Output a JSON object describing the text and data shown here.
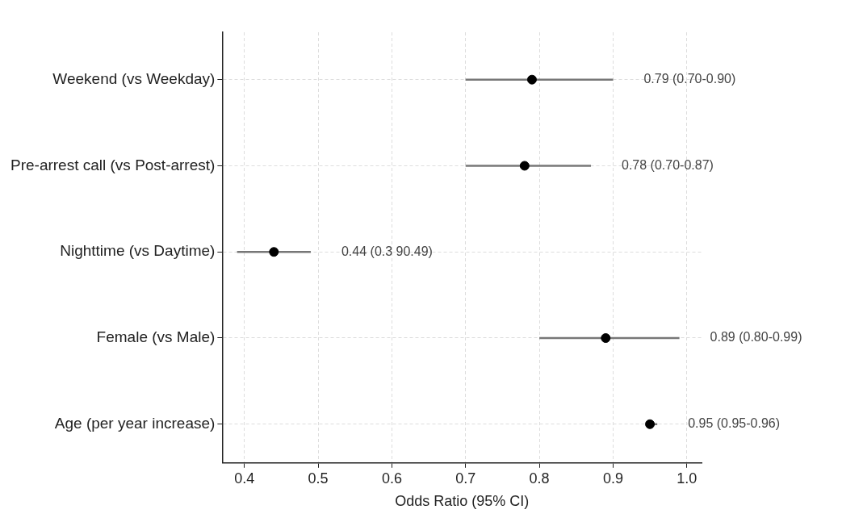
{
  "chart_data": {
    "type": "scatter",
    "orientation": "horizontal",
    "xlabel": "Odds Ratio (95% CI)",
    "categories": [
      "Weekend (vs Weekday)",
      "Pre-arrest call (vs Post-arrest)",
      "Nighttime (vs Daytime)",
      "Female (vs Male)",
      "Age (per year increase)"
    ],
    "values": [
      0.79,
      0.78,
      0.44,
      0.89,
      0.95
    ],
    "errors": [
      [
        0.7,
        0.9
      ],
      [
        0.7,
        0.87
      ],
      [
        0.39,
        0.49
      ],
      [
        0.8,
        0.99
      ],
      [
        0.95,
        0.96
      ]
    ],
    "annotations": [
      {
        "text": "0.79 (0.70-0.90)",
        "x": 0.9,
        "y": "Weekend (vs Weekday)"
      },
      {
        "text": "0.78 (0.70-0.87)",
        "x": 0.87,
        "y": "Pre-arrest call (vs Post-arrest)"
      },
      {
        "text": "0.44 (0.3 90.49)",
        "x": 0.49,
        "y": "Nighttime (vs Daytime)"
      },
      {
        "text": "0.89 (0.80-0.99)",
        "x": 0.99,
        "y": "Female (vs Male)"
      },
      {
        "text": "0.95 (0.95-0.96)",
        "x": 0.96,
        "y": "Age (per year increase)"
      }
    ],
    "color": "#000000",
    "xlim": [
      0.37,
      1.02
    ],
    "xticks": [
      0.4,
      0.5,
      0.6,
      0.7,
      0.8,
      0.9,
      {
        "value": 1,
        "label": "1.0"
      }
    ],
    "grid": true,
    "marker": "circle",
    "legend": false
  }
}
